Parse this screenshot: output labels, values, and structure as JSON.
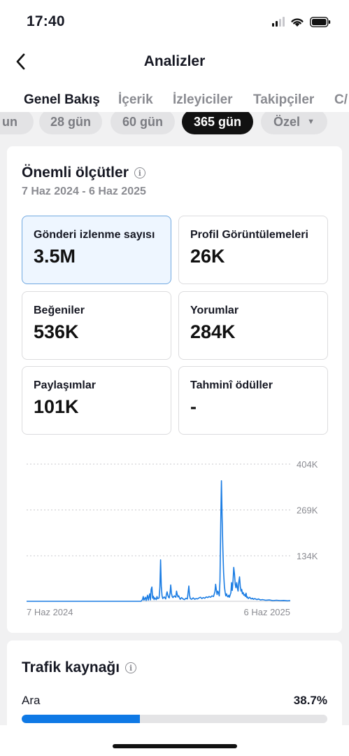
{
  "status_bar": {
    "time": "17:40"
  },
  "nav": {
    "title": "Analizler"
  },
  "tabs": [
    {
      "label": "Genel Bakış",
      "active": true
    },
    {
      "label": "İçerik",
      "active": false
    },
    {
      "label": "İzleyiciler",
      "active": false
    },
    {
      "label": "Takipçiler",
      "active": false
    },
    {
      "label": "C/",
      "active": false
    }
  ],
  "period_chips": [
    {
      "label": "un",
      "active": false
    },
    {
      "label": "28 gün",
      "active": false
    },
    {
      "label": "60 gün",
      "active": false
    },
    {
      "label": "365 gün",
      "active": true
    },
    {
      "label": "Özel",
      "active": false
    }
  ],
  "key_metrics": {
    "title": "Önemli ölçütler",
    "date_range": "7 Haz 2024 - 6 Haz 2025",
    "items": [
      {
        "label": "Gönderi izlenme sayısı",
        "value": "3.5M",
        "selected": true
      },
      {
        "label": "Profil Görüntülemeleri",
        "value": "26K",
        "selected": false
      },
      {
        "label": "Beğeniler",
        "value": "536K",
        "selected": false
      },
      {
        "label": "Yorumlar",
        "value": "284K",
        "selected": false
      },
      {
        "label": "Paylaşımlar",
        "value": "101K",
        "selected": false
      },
      {
        "label": "Tahminî ödüller",
        "value": "-",
        "selected": false
      }
    ]
  },
  "chart_data": {
    "type": "line",
    "title": "",
    "xlabel": "",
    "ylabel": "",
    "x_start_label": "7 Haz 2024",
    "x_end_label": "6 Haz 2025",
    "ylim": [
      0,
      404000
    ],
    "ytick_labels": [
      "404K",
      "269K",
      "134K"
    ],
    "yticks": [
      404000,
      269000,
      134000
    ],
    "grid": true,
    "series_color": "#1a7ce3",
    "points": [
      [
        0,
        0
      ],
      [
        20,
        0
      ],
      [
        40,
        0
      ],
      [
        60,
        0
      ],
      [
        80,
        0
      ],
      [
        100,
        0
      ],
      [
        120,
        0
      ],
      [
        140,
        0
      ],
      [
        158,
        0
      ],
      [
        160,
        5000
      ],
      [
        161,
        14000
      ],
      [
        162,
        3000
      ],
      [
        164,
        12000
      ],
      [
        165,
        2000
      ],
      [
        167,
        18000
      ],
      [
        168,
        3000
      ],
      [
        170,
        22000
      ],
      [
        171,
        4000
      ],
      [
        172,
        35000
      ],
      [
        173,
        42000
      ],
      [
        174,
        9000
      ],
      [
        175,
        15000
      ],
      [
        176,
        5000
      ],
      [
        177,
        10000
      ],
      [
        179,
        5000
      ],
      [
        180,
        14000
      ],
      [
        181,
        8000
      ],
      [
        183,
        10000
      ],
      [
        184,
        40000
      ],
      [
        185,
        122000
      ],
      [
        186,
        45000
      ],
      [
        187,
        16000
      ],
      [
        188,
        8000
      ],
      [
        190,
        13000
      ],
      [
        192,
        7000
      ],
      [
        193,
        20000
      ],
      [
        194,
        28000
      ],
      [
        195,
        18000
      ],
      [
        196,
        12000
      ],
      [
        197,
        10000
      ],
      [
        198,
        24000
      ],
      [
        199,
        48000
      ],
      [
        200,
        24000
      ],
      [
        201,
        14000
      ],
      [
        202,
        11000
      ],
      [
        204,
        16000
      ],
      [
        206,
        12000
      ],
      [
        207,
        30000
      ],
      [
        208,
        20000
      ],
      [
        209,
        13000
      ],
      [
        210,
        16000
      ],
      [
        212,
        6000
      ],
      [
        214,
        11000
      ],
      [
        216,
        7000
      ],
      [
        218,
        5000
      ],
      [
        220,
        9000
      ],
      [
        222,
        7000
      ],
      [
        224,
        45000
      ],
      [
        225,
        18000
      ],
      [
        226,
        8000
      ],
      [
        228,
        6000
      ],
      [
        230,
        10000
      ],
      [
        232,
        6000
      ],
      [
        234,
        8000
      ],
      [
        236,
        7000
      ],
      [
        238,
        10000
      ],
      [
        240,
        12000
      ],
      [
        242,
        8000
      ],
      [
        244,
        11000
      ],
      [
        246,
        9000
      ],
      [
        248,
        13000
      ],
      [
        250,
        11000
      ],
      [
        252,
        14000
      ],
      [
        254,
        12000
      ],
      [
        256,
        16000
      ],
      [
        258,
        14000
      ],
      [
        259,
        21000
      ],
      [
        260,
        28000
      ],
      [
        261,
        50000
      ],
      [
        262,
        32000
      ],
      [
        263,
        20000
      ],
      [
        264,
        30000
      ],
      [
        265,
        25000
      ],
      [
        266,
        16000
      ],
      [
        267,
        60000
      ],
      [
        268,
        230000
      ],
      [
        269,
        355000
      ],
      [
        270,
        245000
      ],
      [
        271,
        150000
      ],
      [
        272,
        85000
      ],
      [
        273,
        45000
      ],
      [
        274,
        28000
      ],
      [
        275,
        16000
      ],
      [
        276,
        22000
      ],
      [
        277,
        15000
      ],
      [
        278,
        13000
      ],
      [
        279,
        18000
      ],
      [
        280,
        12000
      ],
      [
        282,
        25000
      ],
      [
        283,
        55000
      ],
      [
        284,
        32000
      ],
      [
        285,
        60000
      ],
      [
        286,
        100000
      ],
      [
        287,
        80000
      ],
      [
        288,
        50000
      ],
      [
        289,
        40000
      ],
      [
        290,
        55000
      ],
      [
        291,
        40000
      ],
      [
        292,
        30000
      ],
      [
        293,
        58000
      ],
      [
        294,
        72000
      ],
      [
        295,
        45000
      ],
      [
        296,
        30000
      ],
      [
        297,
        35000
      ],
      [
        298,
        22000
      ],
      [
        299,
        26000
      ],
      [
        300,
        18000
      ],
      [
        301,
        20000
      ],
      [
        302,
        14000
      ],
      [
        303,
        24000
      ],
      [
        304,
        11000
      ],
      [
        305,
        13000
      ],
      [
        306,
        8000
      ],
      [
        308,
        12000
      ],
      [
        310,
        7000
      ],
      [
        312,
        9000
      ],
      [
        313,
        6000
      ],
      [
        315,
        8000
      ],
      [
        318,
        5000
      ],
      [
        320,
        7000
      ],
      [
        323,
        4000
      ],
      [
        326,
        5000
      ],
      [
        330,
        3000
      ],
      [
        335,
        4000
      ],
      [
        340,
        2000
      ],
      [
        345,
        3000
      ],
      [
        350,
        2000
      ],
      [
        355,
        2500
      ],
      [
        360,
        1500
      ],
      [
        364,
        2000
      ]
    ]
  },
  "traffic": {
    "title": "Trafik kaynağı",
    "items": [
      {
        "label": "Ara",
        "value_label": "38.7%",
        "fraction": 0.387
      }
    ]
  }
}
